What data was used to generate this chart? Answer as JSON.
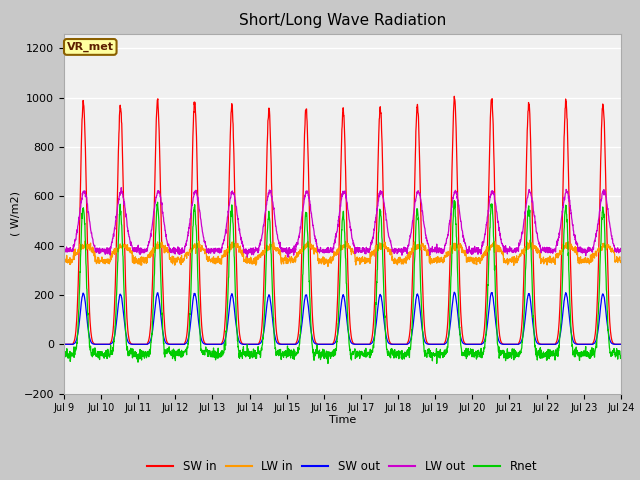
{
  "title": "Short/Long Wave Radiation",
  "ylabel": "( W/m2)",
  "xlabel": "Time",
  "xlim_start": 0,
  "xlim_end": 360,
  "ylim": [
    -200,
    1260
  ],
  "yticks": [
    -200,
    0,
    200,
    400,
    600,
    800,
    1000,
    1200
  ],
  "fig_bg_color": "#c8c8c8",
  "plot_bg_color": "#f0f0f0",
  "label_box_text": "VR_met",
  "label_box_color": "#ffffa0",
  "label_box_edge": "#8B6000",
  "colors": {
    "SW_in": "#ff0000",
    "LW_in": "#ff9900",
    "SW_out": "#0000ff",
    "LW_out": "#cc00cc",
    "Rnet": "#00cc00"
  },
  "legend_labels": [
    "SW in",
    "LW in",
    "SW out",
    "LW out",
    "Rnet"
  ],
  "xtick_labels": [
    "Jul 9",
    "Jul 10",
    "Jul 11",
    "Jul 12",
    "Jul 13",
    "Jul 14",
    "Jul 15",
    "Jul 16",
    "Jul 17",
    "Jul 18",
    "Jul 19",
    "Jul 20",
    "Jul 21",
    "Jul 22",
    "Jul 23",
    "Jul 24"
  ],
  "xtick_positions": [
    0,
    24,
    48,
    72,
    96,
    120,
    144,
    168,
    192,
    216,
    240,
    264,
    288,
    312,
    336,
    360
  ],
  "n_days": 15,
  "hours_per_day": 24,
  "SW_in_peak": 1000,
  "LW_in_base": 340,
  "LW_in_day_peak": 410,
  "SW_out_peak": 210,
  "LW_out_base": 380,
  "LW_out_day_peak": 620,
  "Rnet_night_min": -80
}
